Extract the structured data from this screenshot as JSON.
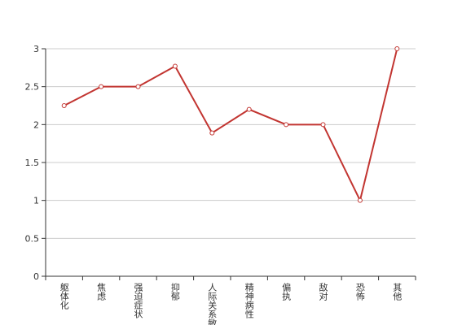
{
  "chart_data": {
    "type": "line",
    "categories": [
      "躯体化",
      "焦虑",
      "强迫症状",
      "抑郁",
      "人际关系敏感",
      "精神病性",
      "偏执",
      "敌对",
      "恐怖",
      "其他"
    ],
    "series": [
      {
        "color": "#c23531",
        "values": [
          2.25,
          2.5,
          2.5,
          2.77,
          1.89,
          2.2,
          2.0,
          2.0,
          1.0,
          3.0
        ]
      }
    ],
    "ylim": [
      0,
      3
    ],
    "yticks": [
      0,
      0.5,
      1,
      1.5,
      2,
      2.5,
      3
    ],
    "grid": true
  }
}
